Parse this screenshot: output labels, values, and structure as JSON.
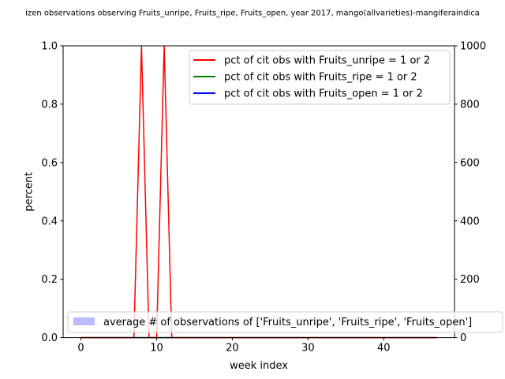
{
  "chart_data": {
    "type": "line",
    "title": "izen observations observing Fruits_unripe, Fruits_ripe, Fruits_open, year 2017, mango(allvarieties)-mangiferaindica",
    "xlabel": "week index",
    "ylabel": "percent",
    "xlim": [
      -2.35,
      49.35
    ],
    "ylim": [
      0,
      1
    ],
    "y2lim": [
      0,
      1000
    ],
    "x_ticks": [
      0,
      10,
      20,
      30,
      40
    ],
    "x_tick_labels": [
      "0",
      "10",
      "20",
      "30",
      "40"
    ],
    "y_ticks": [
      0,
      0.2,
      0.4,
      0.6,
      0.8,
      1.0
    ],
    "y_tick_labels": [
      "0.0",
      "0.2",
      "0.4",
      "0.6",
      "0.8",
      "1.0"
    ],
    "y2_ticks": [
      0,
      200,
      400,
      600,
      800,
      1000
    ],
    "y2_tick_labels": [
      "0",
      "200",
      "400",
      "600",
      "800",
      "1000"
    ],
    "grid": false,
    "legend_position": "top-right",
    "legend2_position": "lower-left",
    "x": [
      0,
      1,
      2,
      3,
      4,
      5,
      6,
      7,
      8,
      9,
      10,
      11,
      12,
      13,
      14,
      15,
      16,
      17,
      18,
      19,
      20,
      21,
      22,
      23,
      24,
      25,
      26,
      27,
      28,
      29,
      30,
      31,
      32,
      33,
      34,
      35,
      36,
      37,
      38,
      39,
      40,
      41,
      42,
      43,
      44,
      45,
      46,
      47
    ],
    "series": [
      {
        "name": "pct of cit obs with Fruits_unripe = 1 or 2",
        "color": "#ff0000",
        "axis": "left",
        "values": [
          0,
          0,
          0,
          0,
          0,
          0,
          0,
          0,
          1,
          0,
          0,
          1,
          0,
          0,
          0,
          0,
          0,
          0,
          0,
          0,
          0,
          0,
          0,
          0,
          0,
          0,
          0,
          0,
          0,
          0,
          0,
          0,
          0,
          0,
          0,
          0,
          0,
          0,
          0,
          0,
          0,
          0,
          0,
          0,
          0,
          0,
          0,
          0
        ]
      },
      {
        "name": "pct of cit obs with Fruits_ripe = 1 or 2",
        "color": "#008000",
        "axis": "left",
        "values": [
          0,
          0,
          0,
          0,
          0,
          0,
          0,
          0,
          0,
          0,
          0,
          0,
          0,
          0,
          0,
          0,
          0,
          0,
          0,
          0,
          0,
          0,
          0,
          0,
          0,
          0,
          0,
          0,
          0,
          0,
          0,
          0,
          0,
          0,
          0,
          0,
          0,
          0,
          0,
          0,
          0,
          0,
          0,
          0,
          0,
          0,
          0,
          0
        ]
      },
      {
        "name": "pct of cit obs with Fruits_open = 1 or 2",
        "color": "#0000ff",
        "axis": "left",
        "values": [
          0,
          0,
          0,
          0,
          0,
          0,
          0,
          0,
          0,
          0,
          0,
          0,
          0,
          0,
          0,
          0,
          0,
          0,
          0,
          0,
          0,
          0,
          0,
          0,
          0,
          0,
          0,
          0,
          0,
          0,
          0,
          0,
          0,
          0,
          0,
          0,
          0,
          0,
          0,
          0,
          0,
          0,
          0,
          0,
          0,
          0,
          0,
          0
        ]
      }
    ],
    "bar_series": {
      "name": "average # of observations of ['Fruits_unripe', 'Fruits_ripe', 'Fruits_open']",
      "color": "#bbbbff",
      "axis": "right",
      "values": [
        0,
        0,
        0,
        0,
        0,
        0,
        0,
        0,
        0,
        0,
        0,
        0,
        0,
        0,
        0,
        0,
        0,
        0,
        0,
        0,
        0,
        0,
        0,
        0,
        0,
        0,
        0,
        0,
        0,
        0,
        0,
        0,
        0,
        0,
        0,
        0,
        0,
        0,
        0,
        0,
        0,
        0,
        0,
        0,
        0,
        0,
        0,
        0
      ]
    }
  }
}
